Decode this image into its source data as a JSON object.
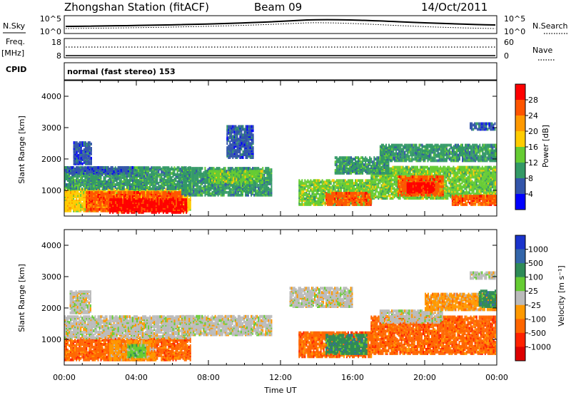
{
  "header": {
    "station": "Zhongshan Station (fitACF)",
    "beam": "Beam 09",
    "date": "14/Oct/2011"
  },
  "noise_panel": {
    "left_label": "N.Sky",
    "left_ticks": [
      "10^5",
      "10^0"
    ],
    "right_label": "N.Search",
    "right_ticks": [
      "10^5",
      "10^0"
    ]
  },
  "freq_panel": {
    "left_label_1": "Freq.",
    "left_label_2": "[MHz]",
    "left_ticks": [
      "18",
      "8"
    ],
    "right_label": "Nave",
    "right_ticks": [
      "60",
      "0"
    ]
  },
  "cpid_panel": {
    "label": "CPID",
    "text": "normal (fast stereo) 153"
  },
  "power_colorbar": {
    "label": "Power [dB]",
    "ticks": [
      "28",
      "24",
      "20",
      "16",
      "12",
      "8",
      "4"
    ],
    "colors": [
      "#ff0000",
      "#ff5500",
      "#ff9900",
      "#ffcc00",
      "#66cc33",
      "#339966",
      "#3355aa",
      "#0000ff"
    ]
  },
  "velocity_colorbar": {
    "label": "Velocity [m s⁻¹]",
    "ticks": [
      "1000",
      "500",
      "100",
      "25",
      "-25",
      "-100",
      "-500",
      "-1000"
    ],
    "colors": [
      "#1a33cc",
      "#3366aa",
      "#2e8b57",
      "#66cc33",
      "#bbbbbb",
      "#ff9900",
      "#ff6600",
      "#ff2200",
      "#dd0000"
    ]
  },
  "chart_data": [
    {
      "type": "heatmap",
      "panel": "power",
      "ylabel": "Slant Range [km]",
      "ylim": [
        180,
        4500
      ],
      "y_ticks": [
        1000,
        2000,
        3000,
        4000
      ],
      "xlim": [
        0,
        24
      ],
      "x_ticks": [
        "00:00",
        "04:00",
        "08:00",
        "12:00",
        "16:00",
        "20:00",
        "00:00"
      ],
      "xlabel": "",
      "blobs": [
        {
          "t": [
            0.0,
            7.0
          ],
          "r": [
            300,
            1000
          ],
          "c": 4
        },
        {
          "t": [
            1.2,
            6.5
          ],
          "r": [
            300,
            900
          ],
          "c": 6
        },
        {
          "t": [
            2.5,
            6.8
          ],
          "r": [
            250,
            700
          ],
          "c": 7
        },
        {
          "t": [
            0.0,
            7.0
          ],
          "r": [
            1000,
            1700
          ],
          "c": 2
        },
        {
          "t": [
            0.0,
            3.8
          ],
          "r": [
            1500,
            1700
          ],
          "c": 1
        },
        {
          "t": [
            0.5,
            1.5
          ],
          "r": [
            1800,
            2500
          ],
          "c": 1
        },
        {
          "t": [
            6.5,
            11.5
          ],
          "r": [
            800,
            1700
          ],
          "c": 2
        },
        {
          "t": [
            8.0,
            11.0
          ],
          "r": [
            1200,
            1600
          ],
          "c": 3
        },
        {
          "t": [
            9.0,
            10.5
          ],
          "r": [
            2000,
            3000
          ],
          "c": 1
        },
        {
          "t": [
            13.0,
            17.0
          ],
          "r": [
            500,
            1300
          ],
          "c": 3
        },
        {
          "t": [
            14.5,
            17.0
          ],
          "r": [
            500,
            900
          ],
          "c": 6
        },
        {
          "t": [
            17.0,
            24.0
          ],
          "r": [
            700,
            1700
          ],
          "c": 3
        },
        {
          "t": [
            18.5,
            21.0
          ],
          "r": [
            800,
            1400
          ],
          "c": 6
        },
        {
          "t": [
            19.0,
            20.5
          ],
          "r": [
            900,
            1200
          ],
          "c": 7
        },
        {
          "t": [
            21.5,
            24.0
          ],
          "r": [
            500,
            800
          ],
          "c": 6
        },
        {
          "t": [
            17.5,
            24.0
          ],
          "r": [
            1900,
            2400
          ],
          "c": 2
        },
        {
          "t": [
            22.5,
            24.0
          ],
          "r": [
            2900,
            3100
          ],
          "c": 1
        },
        {
          "t": [
            15.0,
            18.0
          ],
          "r": [
            1500,
            2000
          ],
          "c": 2
        }
      ]
    },
    {
      "type": "heatmap",
      "panel": "velocity",
      "ylabel": "Slant Range [km]",
      "ylim": [
        180,
        4500
      ],
      "y_ticks": [
        1000,
        2000,
        3000,
        4000
      ],
      "xlim": [
        0,
        24
      ],
      "x_ticks": [
        "00:00",
        "04:00",
        "08:00",
        "12:00",
        "16:00",
        "20:00",
        "00:00"
      ],
      "xlabel": "Time UT",
      "blobs": [
        {
          "t": [
            0.0,
            7.0
          ],
          "r": [
            300,
            1000
          ],
          "c": 2
        },
        {
          "t": [
            2.5,
            5.0
          ],
          "r": [
            300,
            900
          ],
          "c": 3
        },
        {
          "t": [
            3.5,
            4.5
          ],
          "r": [
            400,
            800
          ],
          "c": 5
        },
        {
          "t": [
            0.0,
            7.0
          ],
          "r": [
            1000,
            1700
          ],
          "c": 4
        },
        {
          "t": [
            0.3,
            1.5
          ],
          "r": [
            1800,
            2500
          ],
          "c": 4
        },
        {
          "t": [
            6.5,
            11.5
          ],
          "r": [
            1100,
            1700
          ],
          "c": 4
        },
        {
          "t": [
            13.0,
            17.0
          ],
          "r": [
            400,
            1200
          ],
          "c": 2
        },
        {
          "t": [
            14.5,
            16.8
          ],
          "r": [
            500,
            1100
          ],
          "c": 6
        },
        {
          "t": [
            17.0,
            24.0
          ],
          "r": [
            500,
            1700
          ],
          "c": 2
        },
        {
          "t": [
            17.5,
            21.0
          ],
          "r": [
            1500,
            1900
          ],
          "c": 4
        },
        {
          "t": [
            20.0,
            24.0
          ],
          "r": [
            1900,
            2400
          ],
          "c": 3
        },
        {
          "t": [
            23.0,
            24.0
          ],
          "r": [
            2000,
            2500
          ],
          "c": 6
        },
        {
          "t": [
            12.5,
            16.0
          ],
          "r": [
            2000,
            2600
          ],
          "c": 4
        },
        {
          "t": [
            22.5,
            24.0
          ],
          "r": [
            2900,
            3100
          ],
          "c": 4
        }
      ]
    }
  ]
}
